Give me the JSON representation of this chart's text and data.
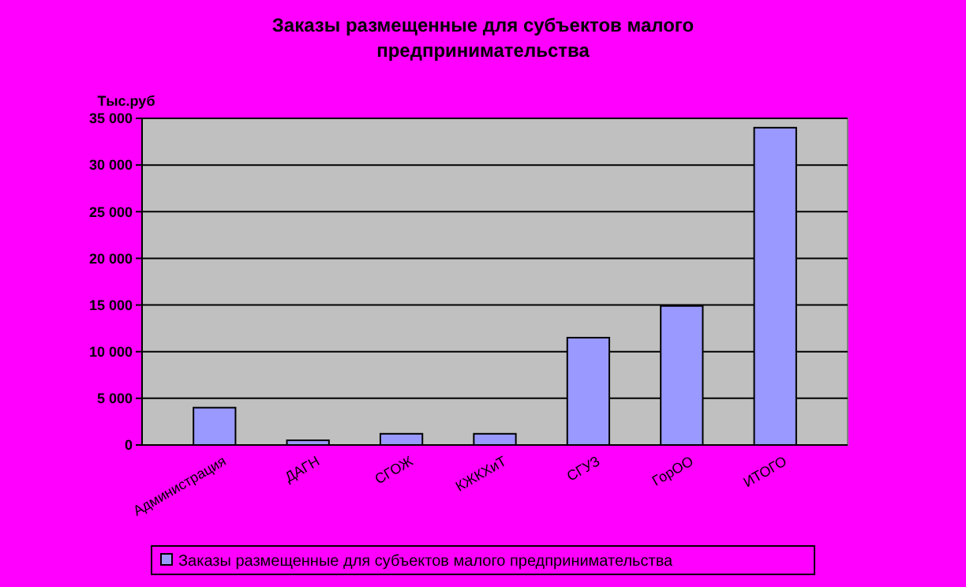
{
  "chart_data": {
    "type": "bar",
    "title": "Заказы размещенные для субъектов малого предпринимательства",
    "ylabel": "Тыс.руб",
    "categories": [
      "Администрация",
      "ДАГН",
      "СГОЖ",
      "КЖКХиТ",
      "СГУЗ",
      "ГорОО",
      "ИТОГО"
    ],
    "series": [
      {
        "name": "Заказы размещенные для субъектов малого предпринимательства",
        "color": "#9999ff",
        "values": [
          4000,
          500,
          1200,
          1200,
          11500,
          14900,
          34000
        ]
      }
    ],
    "ylim": [
      0,
      35000
    ],
    "yticks": [
      {
        "value": 0,
        "label": "0"
      },
      {
        "value": 5000,
        "label": "5 000"
      },
      {
        "value": 10000,
        "label": "10 000"
      },
      {
        "value": 15000,
        "label": "15 000"
      },
      {
        "value": 20000,
        "label": "20 000"
      },
      {
        "value": 25000,
        "label": "25 000"
      },
      {
        "value": 30000,
        "label": "30 000"
      },
      {
        "value": 35000,
        "label": "35 000"
      }
    ],
    "grid": "y",
    "legend": "bottom"
  }
}
